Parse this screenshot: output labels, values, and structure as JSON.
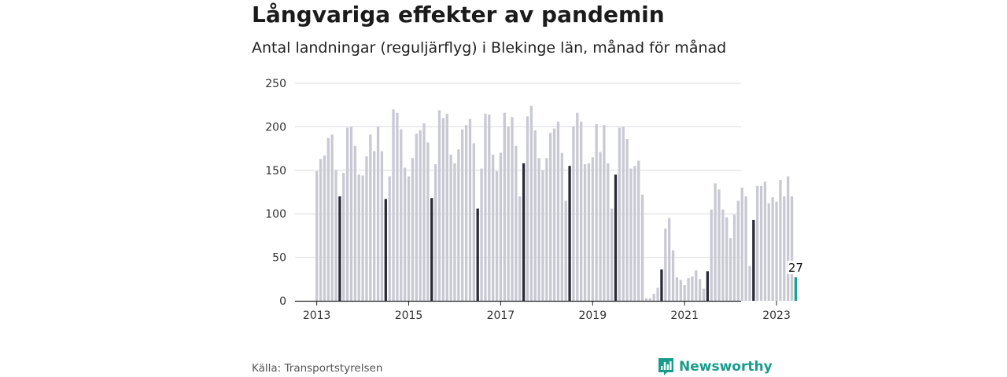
{
  "header": {
    "title": "Långvariga effekter av pandemin",
    "subtitle": "Antal landningar (reguljärflyg) i Blekinge län, månad för månad"
  },
  "footer": {
    "source": "Källa: Transportstyrelsen",
    "brand": "Newsworthy",
    "brand_icon": "bar-chart-icon"
  },
  "colors": {
    "bar": "#c9c9d4",
    "highlight_july": "#2b2b36",
    "last": "#1aa191",
    "grid": "#dcdce2",
    "axis": "#222222",
    "brand": "#1a9c8c"
  },
  "chart_data": {
    "type": "bar",
    "title": "",
    "xlabel": "",
    "ylabel": "",
    "ylim": [
      0,
      250
    ],
    "yticks": [
      0,
      50,
      100,
      150,
      200,
      250
    ],
    "xticks": [
      "2013",
      "2015",
      "2017",
      "2019",
      "2021",
      "2023"
    ],
    "start": "2013-01",
    "grid": true,
    "highlight": "July of each year shown in dark",
    "last_value_label": "27",
    "values": [
      149,
      163,
      167,
      187,
      191,
      150,
      120,
      147,
      199,
      200,
      178,
      145,
      144,
      166,
      191,
      172,
      200,
      172,
      117,
      143,
      220,
      216,
      197,
      153,
      143,
      164,
      192,
      196,
      204,
      182,
      118,
      157,
      219,
      210,
      215,
      168,
      158,
      174,
      197,
      202,
      209,
      181,
      106,
      152,
      215,
      214,
      168,
      149,
      170,
      216,
      200,
      211,
      178,
      120,
      158,
      212,
      224,
      196,
      164,
      150,
      164,
      193,
      198,
      206,
      170,
      115,
      155,
      200,
      216,
      206,
      157,
      158,
      165,
      203,
      171,
      202,
      158,
      106,
      145,
      199,
      200,
      186,
      152,
      155,
      161,
      122,
      3,
      3,
      8,
      15,
      36,
      83,
      95,
      58,
      27,
      24,
      18,
      26,
      28,
      35,
      25,
      14,
      34,
      105,
      135,
      128,
      105,
      96,
      72,
      99,
      115,
      130,
      120,
      40,
      93,
      132,
      132,
      137,
      112,
      119,
      114,
      139,
      120,
      143,
      120,
      27
    ]
  }
}
